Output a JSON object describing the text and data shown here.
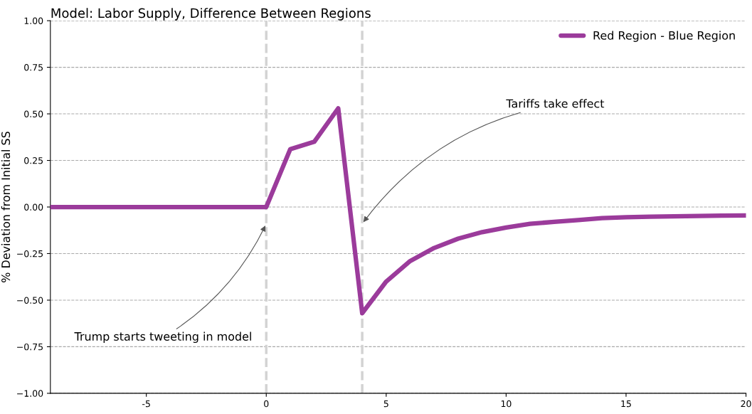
{
  "chart_data": {
    "type": "line",
    "title": "Model: Labor Supply, Difference Between Regions",
    "ylabel": "% Deviation from Initial SS",
    "x": [
      -9,
      -8,
      -7,
      -6,
      -5,
      -4,
      -3,
      -2,
      -1,
      0,
      1,
      2,
      3,
      4,
      5,
      6,
      7,
      8,
      9,
      10,
      11,
      12,
      13,
      14,
      15,
      16,
      17,
      18,
      19,
      20
    ],
    "series": [
      {
        "name": "Red Region - Blue Region",
        "color": "#9b3b9b",
        "values": [
          0,
          0,
          0,
          0,
          0,
          0,
          0,
          0,
          0,
          0,
          0.31,
          0.35,
          0.53,
          -0.57,
          -0.4,
          -0.29,
          -0.22,
          -0.17,
          -0.135,
          -0.11,
          -0.09,
          -0.08,
          -0.07,
          -0.06,
          -0.055,
          -0.052,
          -0.05,
          -0.048,
          -0.046,
          -0.045
        ]
      }
    ],
    "xlim": [
      -9,
      20
    ],
    "xticks": [
      -5,
      0,
      5,
      10,
      15,
      20
    ],
    "ylim": [
      -1,
      1
    ],
    "yticks": [
      {
        "value": -1,
        "label": "−1.00"
      },
      {
        "value": -0.75,
        "label": "−0.75"
      },
      {
        "value": -0.5,
        "label": "−0.50"
      },
      {
        "value": -0.25,
        "label": "−0.25"
      },
      {
        "value": 0,
        "label": "0.00"
      },
      {
        "value": 0.25,
        "label": "0.25"
      },
      {
        "value": 0.5,
        "label": "0.50"
      },
      {
        "value": 0.75,
        "label": "0.75"
      },
      {
        "value": 1,
        "label": "1.00"
      }
    ],
    "ref_lines": [
      {
        "axis": "x",
        "value": 0,
        "color": "#d3d3d3",
        "line_style": "dashed"
      },
      {
        "axis": "x",
        "value": 4,
        "color": "#d3d3d3",
        "line_style": "dashed"
      }
    ],
    "annotations": [
      {
        "text": "Trump starts tweeting in model",
        "x": 0,
        "y": -0.09
      },
      {
        "text": "Tariffs take effect",
        "x": 4,
        "y": -0.09
      }
    ],
    "grid": "y",
    "legend": "top right",
    "line_style": "solid",
    "marker": "none"
  }
}
